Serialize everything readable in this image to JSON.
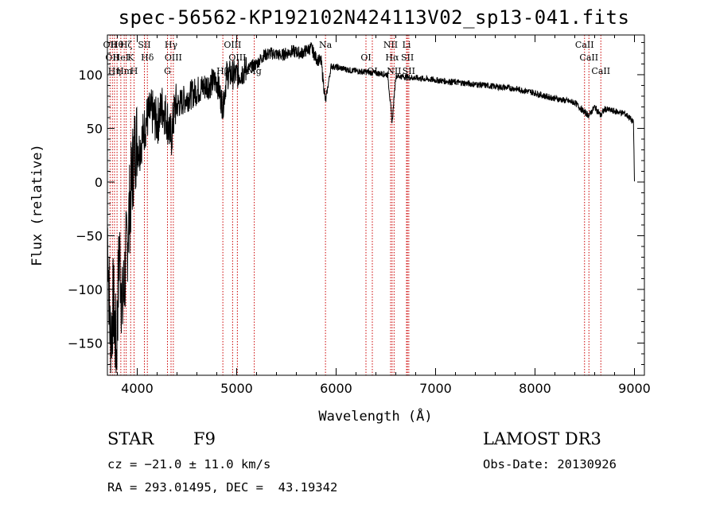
{
  "chart_data": {
    "type": "line",
    "title": "spec-56562-KP192102N424113V02_sp13-041.fits",
    "xlabel": "Wavelength (Å)",
    "ylabel": "Flux (relative)",
    "xlim": [
      3700,
      9100
    ],
    "ylim": [
      -180,
      137
    ],
    "xticks": [
      4000,
      5000,
      6000,
      7000,
      8000,
      9000
    ],
    "xtick_labels": [
      "4000",
      "5000",
      "6000",
      "7000",
      "8000",
      "9000"
    ],
    "yticks": [
      100,
      50,
      0,
      -50,
      -100,
      -150
    ],
    "ytick_labels": [
      "100",
      "50",
      "0",
      "−50",
      "−100",
      "−150"
    ],
    "spectrum": {
      "name": "flux",
      "x": [
        3700,
        3730,
        3760,
        3790,
        3820,
        3850,
        3880,
        3910,
        3935,
        3960,
        3990,
        4020,
        4060,
        4100,
        4150,
        4200,
        4250,
        4300,
        4340,
        4380,
        4450,
        4520,
        4600,
        4700,
        4800,
        4861,
        4900,
        5000,
        5100,
        5200,
        5270,
        5350,
        5450,
        5550,
        5650,
        5750,
        5800,
        5850,
        5893,
        5950,
        6050,
        6150,
        6250,
        6350,
        6450,
        6520,
        6563,
        6600,
        6700,
        6800,
        6900,
        7000,
        7100,
        7200,
        7300,
        7400,
        7500,
        7600,
        7700,
        7800,
        7900,
        8000,
        8100,
        8200,
        8300,
        8400,
        8498,
        8542,
        8600,
        8662,
        8700,
        8800,
        8900,
        8950,
        8990,
        9000
      ],
      "y": [
        -40,
        -150,
        -110,
        -160,
        -60,
        -120,
        -80,
        -40,
        -10,
        20,
        40,
        30,
        45,
        60,
        65,
        55,
        70,
        60,
        40,
        70,
        75,
        80,
        85,
        90,
        95,
        70,
        100,
        100,
        105,
        110,
        118,
        120,
        118,
        122,
        120,
        125,
        115,
        112,
        75,
        108,
        106,
        104,
        103,
        102,
        101,
        100,
        55,
        99,
        98,
        97,
        96,
        95,
        94,
        93,
        92,
        91,
        90,
        89,
        88,
        87,
        85,
        83,
        80,
        78,
        76,
        74,
        65,
        62,
        70,
        62,
        68,
        66,
        64,
        60,
        55,
        0
      ]
    },
    "line_markers": [
      {
        "wavelength": 3727,
        "label": "OII"
      },
      {
        "wavelength": 3750,
        "label": "OII"
      },
      {
        "wavelength": 3771,
        "label": "Hη"
      },
      {
        "wavelength": 3797,
        "label": "Hθ"
      },
      {
        "wavelength": 3835,
        "label": "HeI"
      },
      {
        "wavelength": 3869,
        "label": "Hm"
      },
      {
        "wavelength": 3889,
        "label": "Hζ"
      },
      {
        "wavelength": 3934,
        "label": "K"
      },
      {
        "wavelength": 3968,
        "label": "H"
      },
      {
        "wavelength": 4072,
        "label": "SII"
      },
      {
        "wavelength": 4102,
        "label": "Hδ"
      },
      {
        "wavelength": 4304,
        "label": "G"
      },
      {
        "wavelength": 4340,
        "label": "Hγ"
      },
      {
        "wavelength": 4363,
        "label": "OIII"
      },
      {
        "wavelength": 4861,
        "label": "Hβ"
      },
      {
        "wavelength": 4959,
        "label": "OIII"
      },
      {
        "wavelength": 5007,
        "label": "OIII"
      },
      {
        "wavelength": 5177,
        "label": "Mg"
      },
      {
        "wavelength": 5893,
        "label": "Na"
      },
      {
        "wavelength": 6300,
        "label": "OI"
      },
      {
        "wavelength": 6364,
        "label": "OI"
      },
      {
        "wavelength": 6548,
        "label": "NII"
      },
      {
        "wavelength": 6563,
        "label": "Hα"
      },
      {
        "wavelength": 6583,
        "label": "NII"
      },
      {
        "wavelength": 6708,
        "label": "Li"
      },
      {
        "wavelength": 6717,
        "label": "SII"
      },
      {
        "wavelength": 6731,
        "label": "SII"
      },
      {
        "wavelength": 8498,
        "label": "CaII"
      },
      {
        "wavelength": 8542,
        "label": "CaII"
      },
      {
        "wavelength": 8662,
        "label": "CaII"
      }
    ]
  },
  "info": {
    "object_class": "STAR",
    "subclass": "F9",
    "survey": "LAMOST DR3",
    "redshift_line": "cz = −21.0 ± 11.0 km/s",
    "obs_date_line": "Obs-Date: 20130926",
    "coords_line": "RA = 293.01495, DEC =  43.19342"
  }
}
